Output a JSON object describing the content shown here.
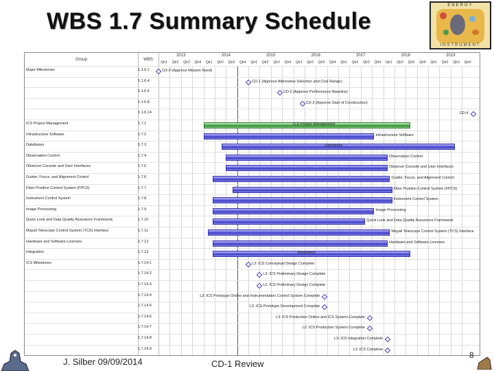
{
  "slide": {
    "title": "WBS 1.7 Summary Schedule",
    "footer_left": "J. Silber   09/09/2014",
    "footer_center": "CD-1 Review",
    "page_number": "8"
  },
  "logo": {
    "text_top": "ENERGY",
    "text_bottom": "INSTRUMENT",
    "colors": {
      "bg": "#e8b84a",
      "frame": "#f2e2a8"
    }
  },
  "gantt": {
    "header": {
      "group": "Group",
      "wbs": "WBS"
    },
    "years": [
      "2013",
      "2014",
      "2015",
      "2016",
      "2017",
      "2018",
      "2019"
    ],
    "quarters": [
      "Qtr1",
      "Qtr2",
      "Qtr3",
      "Qtr4",
      "Qtr1",
      "Qtr2",
      "Qtr3",
      "Qtr4",
      "Qtr1",
      "Qtr2",
      "Qtr3",
      "Qtr4",
      "Qtr1",
      "Qtr2",
      "Qtr3",
      "Qtr4",
      "Qtr1",
      "Qtr2",
      "Qtr3",
      "Qtr4",
      "Qtr1",
      "Qtr2",
      "Qtr3",
      "Qtr4",
      "Qtr1",
      "Qtr2",
      "Qtr3",
      "Qtr4"
    ],
    "rows": [
      {
        "group": "Major Milestones",
        "wbs": "1.1.6.1",
        "type": "milestone",
        "date": 2013.0,
        "label": "CD-0 (Approve Mission Need)",
        "label_side": "right"
      },
      {
        "group": "",
        "wbs": "1.1.6.4",
        "type": "milestone",
        "date": 2015.0,
        "label": "CD-1 (Approve Alternative Selection and Cost Range)",
        "label_side": "right"
      },
      {
        "group": "",
        "wbs": "1.1.6.6",
        "type": "milestone",
        "date": 2015.7,
        "label": "CD-2 (Approve Performance Baseline)",
        "label_side": "right"
      },
      {
        "group": "",
        "wbs": "1.1.6.8",
        "type": "milestone",
        "date": 2016.2,
        "label": "CD-3 (Approve Start of Construction)",
        "label_side": "right"
      },
      {
        "group": "",
        "wbs": "1.1.6.14",
        "type": "milestone",
        "date": 2020.0,
        "label": "CD-4",
        "label_side": "left"
      },
      {
        "group": "ICS Project Management",
        "wbs": "1.7.1",
        "type": "bar",
        "color": "green",
        "start": 2014.0,
        "end": 2018.6,
        "label": "ICS Project Management",
        "label_pos": "inside"
      },
      {
        "group": "Infrastructure Software",
        "wbs": "1.7.2",
        "type": "bar",
        "start": 2014.0,
        "end": 2017.8,
        "label": "Infrastructure Software",
        "label_pos": "after"
      },
      {
        "group": "Databases",
        "wbs": "1.7.3",
        "type": "bar",
        "start": 2014.4,
        "end": 2019.6,
        "label": "Databases",
        "label_pos": "inside"
      },
      {
        "group": "Observation Control",
        "wbs": "1.7.4",
        "type": "bar",
        "start": 2014.5,
        "end": 2018.1,
        "label": "Observation Control",
        "label_pos": "after"
      },
      {
        "group": "Observer Console and User Interfaces",
        "wbs": "1.7.5",
        "type": "bar",
        "start": 2014.5,
        "end": 2018.1,
        "label": "Observer Console and User Interfaces",
        "label_pos": "after"
      },
      {
        "group": "Guider, Focus, and Alignment Control",
        "wbs": "1.7.6",
        "type": "bar",
        "start": 2014.2,
        "end": 2018.15,
        "label": "Guider, Focus, and Alignment Control",
        "label_pos": "after"
      },
      {
        "group": "Fiber Position Control System (FPCS)",
        "wbs": "1.7.7",
        "type": "bar",
        "start": 2014.65,
        "end": 2018.2,
        "label": "Fiber Position Control System (FPCS)",
        "label_pos": "after"
      },
      {
        "group": "Instrument Control System",
        "wbs": "1.7.8",
        "type": "bar",
        "start": 2014.2,
        "end": 2018.2,
        "label": "Instrument Control System",
        "label_pos": "after"
      },
      {
        "group": "Image Processing",
        "wbs": "1.7.9",
        "type": "bar",
        "start": 2014.2,
        "end": 2017.8,
        "label": "Image Processing",
        "label_pos": "after"
      },
      {
        "group": "Quick Look and Data Quality Assurance Framework",
        "wbs": "1.7.10",
        "type": "bar",
        "start": 2014.2,
        "end": 2017.6,
        "label": "Quick Look and Data Quality Assurance Framework",
        "label_pos": "after"
      },
      {
        "group": "Mayall Telescope Control System (TCS) Interface",
        "wbs": "1.7.11",
        "type": "bar",
        "start": 2014.1,
        "end": 2018.15,
        "label": "Mayall Telescope Control System (TCS) Interface",
        "label_pos": "after"
      },
      {
        "group": "Hardware and Software Licenses",
        "wbs": "1.7.12",
        "type": "bar",
        "start": 2014.2,
        "end": 2018.1,
        "label": "Hardware and Software Licenses",
        "label_pos": "after"
      },
      {
        "group": "Integration",
        "wbs": "1.7.13",
        "type": "bar",
        "start": 2014.2,
        "end": 2018.6,
        "label": "Integration",
        "label_pos": "inside"
      },
      {
        "group": "ICS Milestones",
        "wbs": "1.7.14.1",
        "type": "milestone",
        "date": 2015.0,
        "label": "L3: ICS Conceptual Design Complete",
        "label_side": "right"
      },
      {
        "group": "",
        "wbs": "1.7.14.2",
        "type": "milestone",
        "date": 2015.25,
        "label": "L3: ICS Preliminary Design Complete",
        "label_side": "right"
      },
      {
        "group": "",
        "wbs": "1.7.14.3",
        "type": "milestone",
        "date": 2015.25,
        "label": "L2: ICS Preliminary Design Complete",
        "label_side": "right"
      },
      {
        "group": "",
        "wbs": "1.7.14.4",
        "type": "milestone",
        "date": 2016.7,
        "label": "L3: ICS Prototype Online and Instrumentation Control System Complete",
        "label_side": "left"
      },
      {
        "group": "",
        "wbs": "1.7.14.5",
        "type": "milestone",
        "date": 2016.7,
        "label": "L2: ICS Prototype Development Complete",
        "label_side": "left"
      },
      {
        "group": "",
        "wbs": "1.7.14.6",
        "type": "milestone",
        "date": 2017.7,
        "label": "L3: ICS Production Online and ICS System Complete",
        "label_side": "left"
      },
      {
        "group": "",
        "wbs": "1.7.14.7",
        "type": "milestone",
        "date": 2017.7,
        "label": "L2: ICS Production System Complete",
        "label_side": "left"
      },
      {
        "group": "",
        "wbs": "1.7.14.8",
        "type": "milestone",
        "date": 2018.1,
        "label": "L3: ICS Integration Complete",
        "label_side": "left"
      },
      {
        "group": "",
        "wbs": "1.7.14.9",
        "type": "milestone",
        "date": 2018.1,
        "label": "L2: ICS Complete",
        "label_side": "left"
      }
    ],
    "today_marker": 2014.75
  }
}
